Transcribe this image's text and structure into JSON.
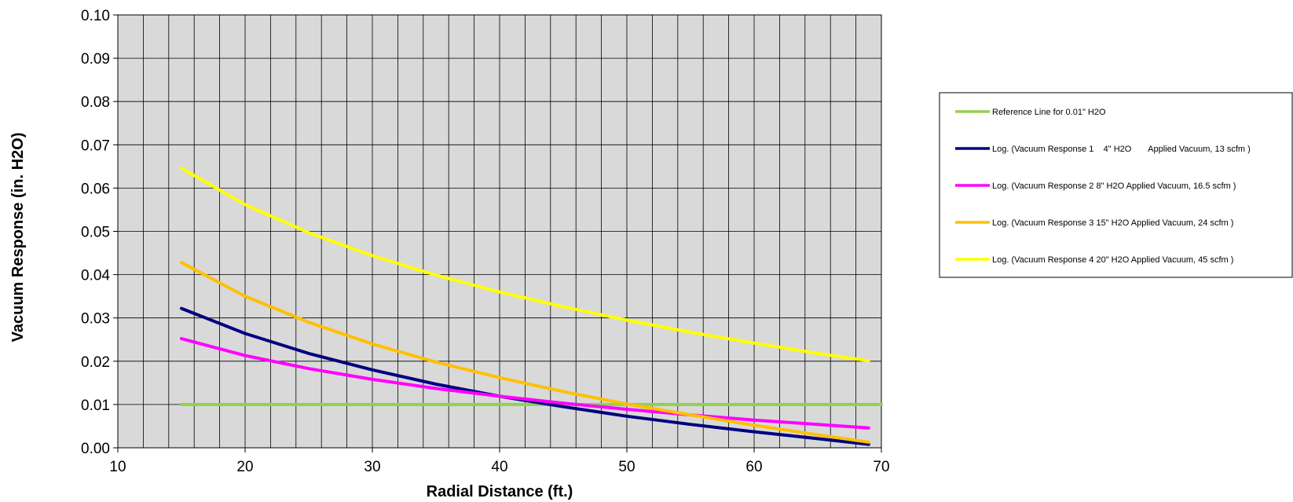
{
  "chart_data": {
    "type": "line",
    "title": "",
    "xlabel": "Radial Distance (ft.)",
    "ylabel": "Vacuum Response (in. H2O)",
    "xlim": [
      10,
      70
    ],
    "ylim": [
      0,
      0.1
    ],
    "x_ticks": [
      "10",
      "20",
      "30",
      "40",
      "50",
      "60",
      "70"
    ],
    "y_ticks": [
      "0.00",
      "0.01",
      "0.02",
      "0.03",
      "0.04",
      "0.05",
      "0.06",
      "0.07",
      "0.08",
      "0.09",
      "0.10"
    ],
    "grid": true,
    "plot_background": "#d9d9d9",
    "legend_position": "right",
    "series": [
      {
        "name": "Reference Line for 0.01\" H2O",
        "color": "#92d050",
        "x": [
          15,
          70
        ],
        "y": [
          0.01,
          0.01
        ]
      },
      {
        "name": "Log. (Vacuum Response 1    4\" H2O       Applied Vacuum, 13 scfm )",
        "color": "#000080",
        "x": [
          15,
          20,
          25,
          30,
          35,
          40,
          45,
          50,
          55,
          60,
          65,
          69
        ],
        "y": [
          0.0322,
          0.0264,
          0.0218,
          0.018,
          0.0147,
          0.0119,
          0.0095,
          0.0073,
          0.0054,
          0.0037,
          0.0021,
          0.0008
        ]
      },
      {
        "name": "Log. (Vacuum Response 2 8\" H2O Applied Vacuum, 16.5 scfm )",
        "color": "#ff00ff",
        "x": [
          15,
          20,
          25,
          30,
          35,
          40,
          45,
          50,
          55,
          60,
          65,
          69
        ],
        "y": [
          0.0252,
          0.0213,
          0.0183,
          0.0158,
          0.0137,
          0.0119,
          0.0103,
          0.0089,
          0.0076,
          0.0064,
          0.0054,
          0.0046
        ]
      },
      {
        "name": "Log. (Vacuum Response 3 15\" H2O Applied Vacuum, 24 scfm )",
        "color": "#ffc000",
        "x": [
          15,
          20,
          25,
          30,
          35,
          40,
          45,
          50,
          55,
          60,
          65,
          69
        ],
        "y": [
          0.0428,
          0.035,
          0.029,
          0.024,
          0.0198,
          0.0162,
          0.013,
          0.0101,
          0.0076,
          0.0052,
          0.003,
          0.0013
        ]
      },
      {
        "name": "Log. (Vacuum Response 4 20\" H2O Applied Vacuum, 45 scfm )",
        "color": "#ffff00",
        "x": [
          15,
          20,
          25,
          30,
          35,
          40,
          45,
          50,
          55,
          60,
          65,
          69
        ],
        "y": [
          0.0646,
          0.0562,
          0.0497,
          0.0444,
          0.0399,
          0.036,
          0.0326,
          0.0295,
          0.0267,
          0.0242,
          0.0218,
          0.0201
        ]
      }
    ]
  }
}
